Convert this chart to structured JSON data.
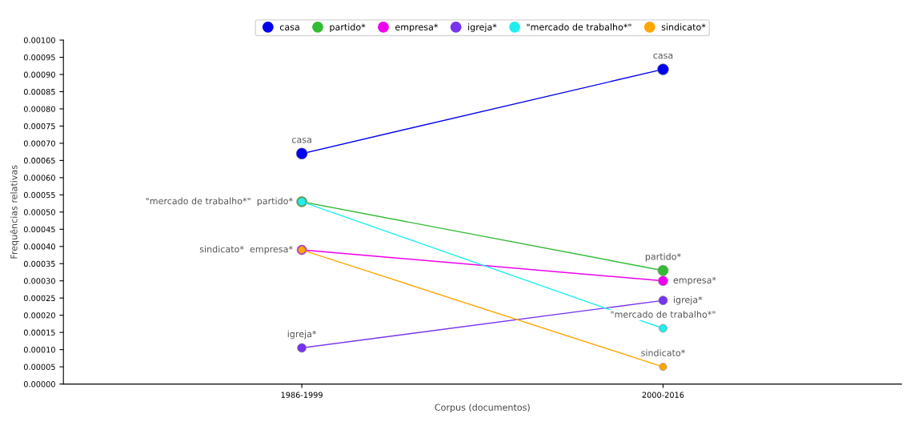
{
  "chart_data": {
    "type": "line",
    "xlabel": "Corpus (documentos)",
    "ylabel": "Frequências relativas",
    "categories": [
      "1986-1999",
      "2000-2016"
    ],
    "series": [
      {
        "name": "casa",
        "color": "#0000ee",
        "values": [
          0.00067,
          0.000915
        ]
      },
      {
        "name": "partido*",
        "color": "#33bb33",
        "values": [
          0.00053,
          0.00033
        ]
      },
      {
        "name": "empresa*",
        "color": "#ee00ee",
        "values": [
          0.00039,
          0.0003
        ]
      },
      {
        "name": "igreja*",
        "color": "#7733ee",
        "values": [
          0.000105,
          0.000243
        ]
      },
      {
        "name": "\"mercado de trabalho*\"",
        "color": "#22eeee",
        "values": [
          0.00053,
          0.000162
        ]
      },
      {
        "name": "sindicato*",
        "color": "#ffa500",
        "values": [
          0.00039,
          5e-05
        ]
      }
    ],
    "ylim": [
      0,
      0.001
    ],
    "yticks": [
      {
        "value": 0,
        "label": "0.00000"
      },
      {
        "value": 5e-05,
        "label": "0.00005"
      },
      {
        "value": 0.0001,
        "label": "0.00010"
      },
      {
        "value": 0.00015,
        "label": "0.00015"
      },
      {
        "value": 0.0002,
        "label": "0.00020"
      },
      {
        "value": 0.00025,
        "label": "0.00025"
      },
      {
        "value": 0.0003,
        "label": "0.00030"
      },
      {
        "value": 0.00035,
        "label": "0.00035"
      },
      {
        "value": 0.0004,
        "label": "0.00040"
      },
      {
        "value": 0.00045,
        "label": "0.00045"
      },
      {
        "value": 0.0005,
        "label": "0.00050"
      },
      {
        "value": 0.00055,
        "label": "0.00055"
      },
      {
        "value": 0.0006,
        "label": "0.00060"
      },
      {
        "value": 0.00065,
        "label": "0.00065"
      },
      {
        "value": 0.0007,
        "label": "0.00070"
      },
      {
        "value": 0.00075,
        "label": "0.00075"
      },
      {
        "value": 0.0008,
        "label": "0.00080"
      },
      {
        "value": 0.00085,
        "label": "0.00085"
      },
      {
        "value": 0.0009,
        "label": "0.00090"
      },
      {
        "value": 0.00095,
        "label": "0.00095"
      },
      {
        "value": 0.001,
        "label": "0.00100"
      }
    ],
    "grid": false,
    "legend": "top",
    "marker": "circle",
    "line_style": "solid"
  }
}
